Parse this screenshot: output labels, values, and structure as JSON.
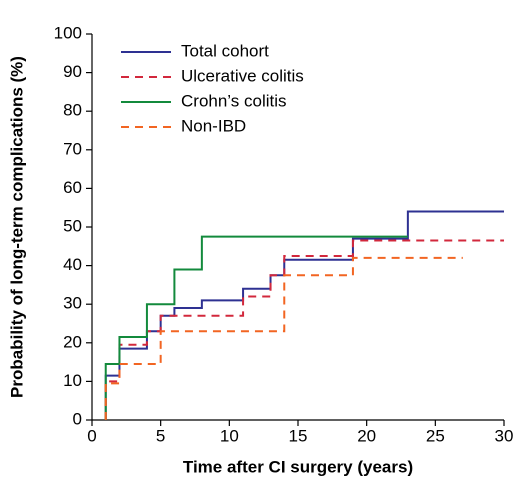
{
  "chart_data": {
    "type": "step",
    "x_label": "Time after CI surgery (years)",
    "y_label": "Probability of long-term complications (%)",
    "xlim": [
      0,
      30
    ],
    "xticks": [
      0,
      5,
      10,
      15,
      20,
      25,
      30
    ],
    "ylim": [
      0,
      100
    ],
    "yticks": [
      0,
      10,
      20,
      30,
      40,
      50,
      60,
      70,
      80,
      90,
      100
    ],
    "grid": false,
    "legend": "upper left",
    "series": [
      {
        "name": "Total cohort",
        "color": "#2e3192",
        "dash": false,
        "x": [
          1,
          1,
          2,
          4,
          5,
          6,
          8,
          11,
          13,
          14,
          19,
          23,
          30
        ],
        "values": [
          0,
          11.5,
          18.5,
          23,
          27,
          29,
          31,
          34,
          37.5,
          41.5,
          47,
          54,
          54
        ]
      },
      {
        "name": "Ulcerative colitis",
        "color": "#d2283c",
        "dash": true,
        "x": [
          1,
          1,
          2,
          4,
          5,
          11,
          13,
          14,
          19,
          30
        ],
        "values": [
          0,
          10,
          19.5,
          23,
          27,
          32,
          37.5,
          42.5,
          46.5,
          46.5
        ]
      },
      {
        "name": "Crohn’s colitis",
        "color": "#138a3c",
        "dash": false,
        "x": [
          1,
          1,
          2,
          4,
          6,
          8,
          23
        ],
        "values": [
          0,
          14.5,
          21.5,
          30,
          39,
          47.5,
          47.5
        ]
      },
      {
        "name": "Non-IBD",
        "color": "#f26522",
        "dash": true,
        "x": [
          1,
          1,
          2,
          5,
          14,
          19,
          27
        ],
        "values": [
          0,
          9.5,
          14.5,
          23,
          37.5,
          42,
          42
        ]
      }
    ]
  }
}
